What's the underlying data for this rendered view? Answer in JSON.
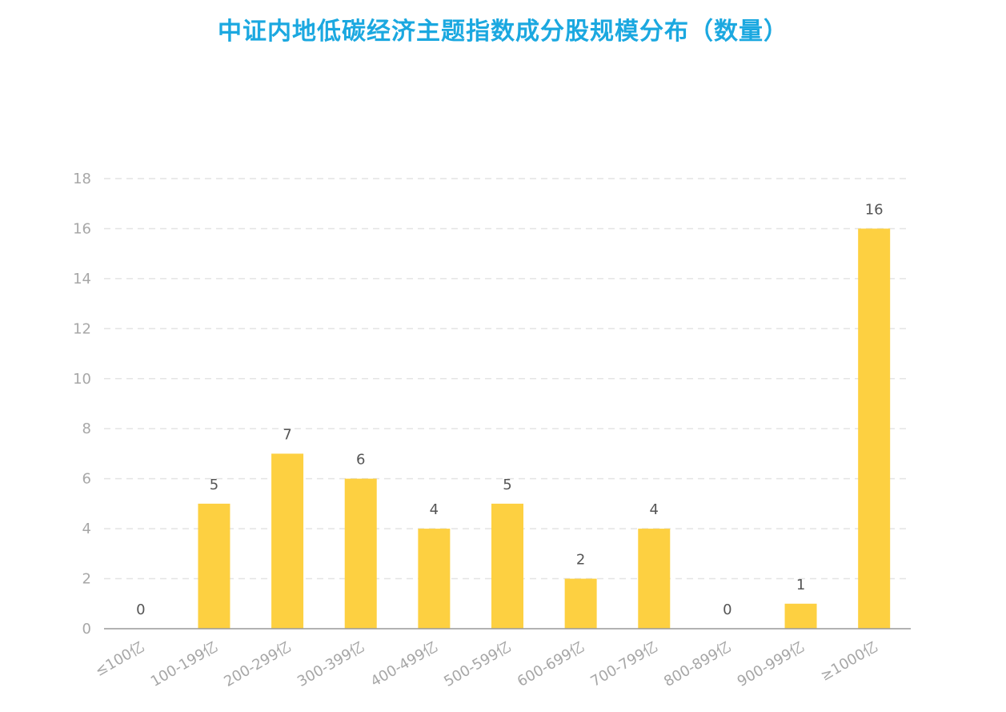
{
  "chart_data": {
    "type": "bar",
    "title": "中证内地低碳经济主题指数成分股规模分布（数量）",
    "xlabel": "",
    "ylabel": "",
    "categories": [
      "≤100亿",
      "100-199亿",
      "200-299亿",
      "300-399亿",
      "400-499亿",
      "500-599亿",
      "600-699亿",
      "700-799亿",
      "800-899亿",
      "900-999亿",
      "≥1000亿"
    ],
    "values": [
      0,
      5,
      7,
      6,
      4,
      5,
      2,
      4,
      0,
      1,
      16
    ],
    "ylim": [
      0,
      18
    ],
    "yticks": [
      0,
      2,
      4,
      6,
      8,
      10,
      12,
      14,
      16,
      18
    ],
    "grid": true,
    "legend": "none",
    "data_labels": true,
    "x_label_rotation": "rotated",
    "colors": {
      "bar": "#fdd041",
      "title": "#1ba8e0",
      "grid": "#e4e4e4",
      "axis": "#999999"
    }
  }
}
